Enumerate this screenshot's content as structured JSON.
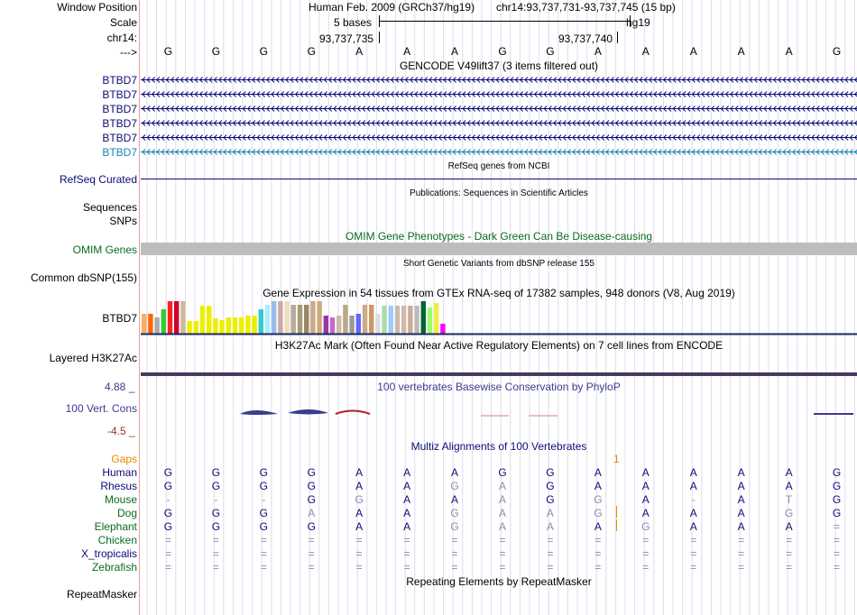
{
  "header": {
    "window_position_label": "Window Position",
    "scale_label": "Scale",
    "chrom_label": "chr14:",
    "arrow_label": "--->",
    "assembly": "Human Feb. 2009 (GRCh37/hg19)",
    "position": "chr14:93,737,731-93,737,745 (15 bp)",
    "scale_text": "5 bases",
    "db": "hg19",
    "coord_left": "93,737,735",
    "coord_right": "93,737,740"
  },
  "bases": [
    "G",
    "G",
    "G",
    "G",
    "A",
    "A",
    "A",
    "G",
    "G",
    "A",
    "A",
    "A",
    "A",
    "A",
    "G"
  ],
  "gencode": {
    "title": "GENCODE V49lift37 (3 items filtered out)",
    "items": [
      {
        "label": "BTBD7",
        "color": "#0c0c78"
      },
      {
        "label": "BTBD7",
        "color": "#0c0c78"
      },
      {
        "label": "BTBD7",
        "color": "#0c0c78"
      },
      {
        "label": "BTBD7",
        "color": "#0c0c78"
      },
      {
        "label": "BTBD7",
        "color": "#0c0c78"
      },
      {
        "label": "BTBD7",
        "color": "#1a7fb4"
      }
    ]
  },
  "refseq": {
    "title": "RefSeq genes from NCBI",
    "label": "RefSeq Curated",
    "color": "#0c0c78"
  },
  "pubs": {
    "title": "Publications: Sequences in Scientific Articles",
    "label": "Sequences"
  },
  "snps": {
    "label": "SNPs"
  },
  "omim": {
    "title": "OMIM Gene Phenotypes - Dark Green Can Be Disease-causing",
    "label": "OMIM Genes",
    "color": "#0b6b1e"
  },
  "dbsnp": {
    "title": "Short Genetic Variants from dbSNP release 155",
    "label": "Common dbSNP(155)"
  },
  "gtex": {
    "title": "Gene Expression in 54 tissues from GTEx RNA-seq of 17382 samples, 948 donors (V8, Aug 2019)",
    "label": "BTBD7",
    "bars": [
      {
        "c": "#ffaa66",
        "v": 0.62
      },
      {
        "c": "#ff6600",
        "v": 0.62
      },
      {
        "c": "#aaaaaa",
        "v": 0.5
      },
      {
        "c": "#33cc33",
        "v": 0.75
      },
      {
        "c": "#ff2222",
        "v": 1.0
      },
      {
        "c": "#cc0033",
        "v": 1.0
      },
      {
        "c": "#ccbb99",
        "v": 1.0
      },
      {
        "c": "#eeee00",
        "v": 0.38
      },
      {
        "c": "#eeee00",
        "v": 0.38
      },
      {
        "c": "#eeee00",
        "v": 0.85
      },
      {
        "c": "#eeee00",
        "v": 0.85
      },
      {
        "c": "#eeee00",
        "v": 0.48
      },
      {
        "c": "#eeee00",
        "v": 0.42
      },
      {
        "c": "#eeee00",
        "v": 0.5
      },
      {
        "c": "#eeee00",
        "v": 0.5
      },
      {
        "c": "#eeee00",
        "v": 0.5
      },
      {
        "c": "#eeee00",
        "v": 0.55
      },
      {
        "c": "#eeee00",
        "v": 0.55
      },
      {
        "c": "#33cccc",
        "v": 0.75
      },
      {
        "c": "#aaeeff",
        "v": 0.9
      },
      {
        "c": "#99bbee",
        "v": 1.0
      },
      {
        "c": "#ccaaaa",
        "v": 1.0
      },
      {
        "c": "#eeddbb",
        "v": 1.0
      },
      {
        "c": "#bbaa99",
        "v": 0.9
      },
      {
        "c": "#aa9977",
        "v": 0.9
      },
      {
        "c": "#998866",
        "v": 0.9
      },
      {
        "c": "#ccaa88",
        "v": 1.0
      },
      {
        "c": "#ccaa77",
        "v": 1.0
      },
      {
        "c": "#9933aa",
        "v": 0.55
      },
      {
        "c": "#cc66cc",
        "v": 0.5
      },
      {
        "c": "#ccbbaa",
        "v": 0.55
      },
      {
        "c": "#bbaa88",
        "v": 0.9
      },
      {
        "c": "#999999",
        "v": 0.55
      },
      {
        "c": "#6666ff",
        "v": 0.62
      },
      {
        "c": "#ccaa88",
        "v": 0.9
      },
      {
        "c": "#cc9966",
        "v": 0.9
      },
      {
        "c": "#dddddd",
        "v": 0.62
      },
      {
        "c": "#aaddaa",
        "v": 0.85
      },
      {
        "c": "#99ccff",
        "v": 0.85
      },
      {
        "c": "#ccbbaa",
        "v": 0.85
      },
      {
        "c": "#ccbbaa",
        "v": 0.85
      },
      {
        "c": "#ccaa99",
        "v": 0.85
      },
      {
        "c": "#bbbbbb",
        "v": 0.85
      },
      {
        "c": "#006633",
        "v": 1.0
      },
      {
        "c": "#99ff66",
        "v": 0.8
      },
      {
        "c": "#eeee44",
        "v": 0.95
      },
      {
        "c": "#ff00ff",
        "v": 0.3
      }
    ]
  },
  "h3k27ac": {
    "title": "H3K27Ac Mark (Often Found Near Active Regulatory Elements) on 7 cell lines from ENCODE",
    "label": "Layered H3K27Ac"
  },
  "phylop": {
    "title": "100 vertebrates Basewise Conservation by PhyloP",
    "label": "100 Vert. Cons",
    "ymax": "4.88 _",
    "ymin": "-4.5 _",
    "color": "#3c3c8c"
  },
  "multiz": {
    "title": "Multiz Alignments of 100 Vertebrates",
    "gaps_label": "Gaps",
    "gaps_marker": "1",
    "species": [
      {
        "name": "Human",
        "color": "#0c0c78",
        "bases": [
          "G",
          "G",
          "G",
          "G",
          "A",
          "A",
          "A",
          "G",
          "G",
          "A",
          "A",
          "A",
          "A",
          "A",
          "G"
        ],
        "faint": []
      },
      {
        "name": "Rhesus",
        "color": "#0c0c78",
        "bases": [
          "G",
          "G",
          "G",
          "G",
          "A",
          "A",
          "G",
          "A",
          "G",
          "A",
          "A",
          "A",
          "A",
          "A",
          "G"
        ],
        "faint": [
          6,
          7
        ]
      },
      {
        "name": "Mouse",
        "color": "#0b6b1e",
        "bases": [
          "-",
          "-",
          "-",
          "G",
          "G",
          "A",
          "A",
          "A",
          "G",
          "G",
          "A",
          "-",
          "A",
          "T",
          "G"
        ],
        "faint": [
          0,
          1,
          2,
          4,
          7,
          9,
          11,
          13
        ]
      },
      {
        "name": "Dog",
        "color": "#0b6b1e",
        "bases": [
          "G",
          "G",
          "G",
          "A",
          "A",
          "A",
          "G",
          "A",
          "A",
          "G",
          "A",
          "A",
          "A",
          "G",
          "G"
        ],
        "faint": [
          3,
          6,
          7,
          8,
          9,
          13
        ]
      },
      {
        "name": "Elephant",
        "color": "#0b6b1e",
        "bases": [
          "G",
          "G",
          "G",
          "G",
          "A",
          "A",
          "G",
          "A",
          "A",
          "A",
          "G",
          "A",
          "A",
          "A",
          "="
        ],
        "faint": [
          6,
          7,
          8,
          10,
          14
        ]
      },
      {
        "name": "Chicken",
        "color": "#0b6b1e",
        "bases": [
          "=",
          "=",
          "=",
          "=",
          "=",
          "=",
          "=",
          "=",
          "=",
          "=",
          "=",
          "=",
          "=",
          "=",
          "="
        ],
        "faint": []
      },
      {
        "name": "X_tropicalis",
        "color": "#0c0c78",
        "bases": [
          "=",
          "=",
          "=",
          "=",
          "=",
          "=",
          "=",
          "=",
          "=",
          "=",
          "=",
          "=",
          "=",
          "=",
          "="
        ],
        "faint": []
      },
      {
        "name": "Zebrafish",
        "color": "#0b6b1e",
        "bases": [
          "=",
          "=",
          "=",
          "=",
          "=",
          "=",
          "=",
          "=",
          "=",
          "=",
          "=",
          "=",
          "=",
          "=",
          "="
        ],
        "faint": []
      }
    ]
  },
  "repeatmasker": {
    "title": "Repeating Elements by RepeatMasker",
    "label": "RepeatMasker"
  }
}
